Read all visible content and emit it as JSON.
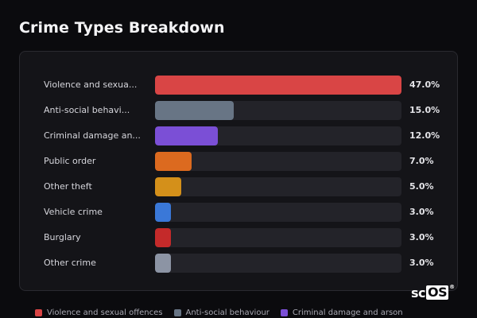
{
  "title": "Crime Types Breakdown",
  "chart_data": {
    "type": "bar",
    "orientation": "horizontal",
    "title": "Crime Types Breakdown",
    "categories": [
      "Violence and sexual offences",
      "Anti-social behaviour",
      "Criminal damage and arson",
      "Public order",
      "Other theft",
      "Vehicle crime",
      "Burglary",
      "Other crime"
    ],
    "display_labels": [
      "Violence and sexua...",
      "Anti-social behavi...",
      "Criminal damage an...",
      "Public order",
      "Other theft",
      "Vehicle crime",
      "Burglary",
      "Other crime"
    ],
    "values": [
      47.0,
      15.0,
      12.0,
      7.0,
      5.0,
      3.0,
      3.0,
      3.0
    ],
    "value_labels": [
      "47.0%",
      "15.0%",
      "12.0%",
      "7.0%",
      "5.0%",
      "3.0%",
      "3.0%",
      "3.0%"
    ],
    "colors": [
      "#d94545",
      "#687585",
      "#7b4fd6",
      "#dc6a1f",
      "#d4901a",
      "#3a78d8",
      "#c42a2a",
      "#8c94a4"
    ],
    "xlim": [
      0,
      47
    ],
    "grid": false
  },
  "legend": [
    {
      "label": "Violence and sexual offences",
      "color": "#d94545"
    },
    {
      "label": "Anti-social behaviour",
      "color": "#687585"
    },
    {
      "label": "Criminal damage and arson",
      "color": "#7b4fd6"
    }
  ],
  "logo": {
    "prefix": "sc",
    "boxed": "OS",
    "mark": "®"
  }
}
